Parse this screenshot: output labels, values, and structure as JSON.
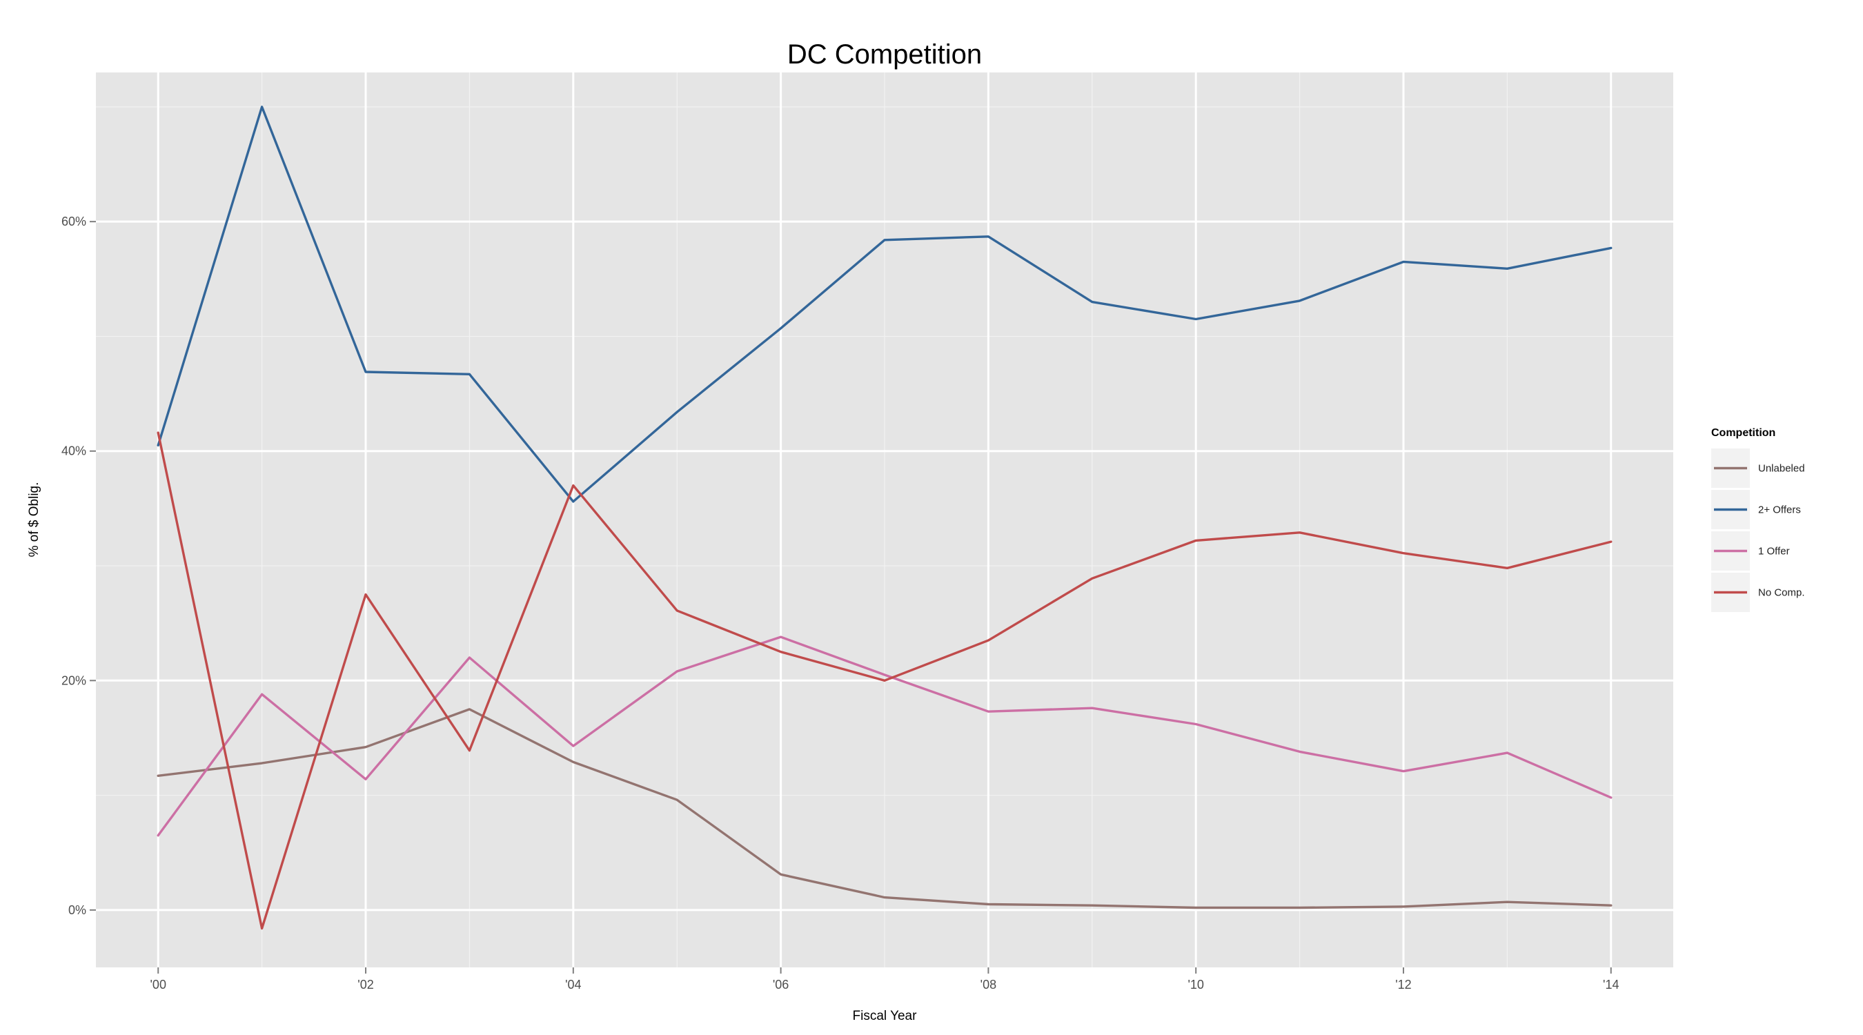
{
  "chart_data": {
    "type": "line",
    "title": "DC Competition",
    "xlabel": "Fiscal Year",
    "ylabel": "% of $ Oblig.",
    "x": [
      2000,
      2001,
      2002,
      2003,
      2004,
      2005,
      2006,
      2007,
      2008,
      2009,
      2010,
      2011,
      2012,
      2013,
      2014
    ],
    "xlim": [
      1999.4,
      2014.6
    ],
    "ylim": [
      -5,
      73
    ],
    "x_ticks": [
      2000,
      2002,
      2004,
      2006,
      2008,
      2010,
      2012,
      2014
    ],
    "x_tick_labels": [
      "'00",
      "'02",
      "'04",
      "'06",
      "'08",
      "'10",
      "'12",
      "'14"
    ],
    "y_ticks": [
      0,
      20,
      40,
      60
    ],
    "y_tick_labels": [
      "0%",
      "20%",
      "40%",
      "60%"
    ],
    "grid": true,
    "legend_title": "Competition",
    "legend_position": "right",
    "series": [
      {
        "name": "Unlabeled",
        "color": "#937470",
        "values": [
          11.7,
          12.8,
          14.2,
          17.5,
          12.9,
          9.6,
          3.1,
          1.1,
          0.5,
          0.4,
          0.2,
          0.2,
          0.3,
          0.7,
          0.4
        ]
      },
      {
        "name": "2+ Offers",
        "color": "#336699",
        "values": [
          40.5,
          70.0,
          46.9,
          46.7,
          35.6,
          43.4,
          50.7,
          58.4,
          58.7,
          53.0,
          51.5,
          53.1,
          56.5,
          55.9,
          57.7
        ]
      },
      {
        "name": "1 Offer",
        "color": "#CC6FA4",
        "values": [
          6.5,
          18.8,
          11.4,
          22.0,
          14.3,
          20.8,
          23.8,
          20.5,
          17.3,
          17.6,
          16.2,
          13.8,
          12.1,
          13.7,
          9.8
        ]
      },
      {
        "name": "No Comp.",
        "color": "#C04B4B",
        "values": [
          41.6,
          -1.6,
          27.5,
          13.9,
          37.0,
          26.1,
          22.5,
          20.0,
          23.5,
          28.9,
          32.2,
          32.9,
          31.1,
          29.8,
          32.1
        ]
      }
    ]
  }
}
